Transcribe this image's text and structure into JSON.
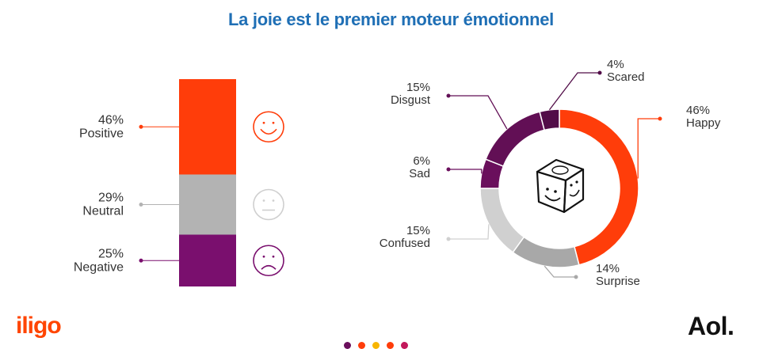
{
  "title": "La joie est le premier moteur émotionnel",
  "brands": {
    "left": "iligo",
    "right": "Aol."
  },
  "chart_data": [
    {
      "type": "bar",
      "stacked": true,
      "categories": [
        "Positive",
        "Neutral",
        "Negative"
      ],
      "values": [
        46,
        29,
        25
      ],
      "labels": [
        "46%",
        "29%",
        "25%"
      ],
      "colors": [
        "#ff3d0a",
        "#b3b3b3",
        "#7a0f6e"
      ],
      "icons": [
        "happy-face-icon",
        "neutral-face-icon",
        "sad-face-icon"
      ]
    },
    {
      "type": "pie",
      "donut": true,
      "categories": [
        "Happy",
        "Surprise",
        "Confused",
        "Sad",
        "Disgust",
        "Scared"
      ],
      "values": [
        46,
        14,
        15,
        6,
        15,
        4
      ],
      "labels": [
        "46%",
        "14%",
        "15%",
        "6%",
        "15%",
        "4%"
      ],
      "colors": [
        "#ff3d0a",
        "#a8a8a8",
        "#d0d0d0",
        "#6a0f5c",
        "#620f55",
        "#520d48"
      ],
      "center_icon": "emotion-cube-icon"
    }
  ],
  "footer_dots": [
    "#6a0f5c",
    "#ff3d0a",
    "#f7b500",
    "#ff3d0a",
    "#c2185b"
  ]
}
